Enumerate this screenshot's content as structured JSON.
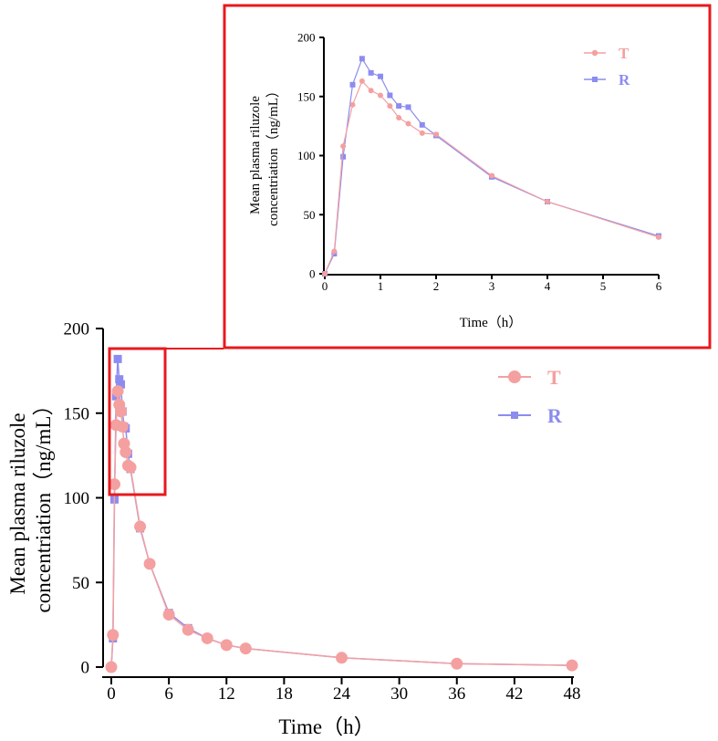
{
  "chart_data": [
    {
      "id": "main",
      "type": "line",
      "title": "",
      "xlabel": "Time（h）",
      "ylabel": [
        "Mean plasma riluzole",
        "concentriation（ng/mL）"
      ],
      "xlim": [
        0,
        48
      ],
      "ylim": [
        0,
        200
      ],
      "xticks": [
        0,
        6,
        12,
        18,
        24,
        30,
        36,
        42,
        48
      ],
      "yticks": [
        0,
        50,
        100,
        150,
        200
      ],
      "grid": false,
      "legend_position": "top-right",
      "series": [
        {
          "name": "T",
          "color": "#F4A0A0",
          "marker": "circle",
          "x": [
            0,
            0.17,
            0.33,
            0.5,
            0.67,
            0.83,
            1,
            1.17,
            1.33,
            1.5,
            1.75,
            2,
            3,
            4,
            6,
            8,
            10,
            12,
            14,
            24,
            36,
            48
          ],
          "y": [
            0,
            19,
            108,
            143,
            163,
            155,
            151,
            142,
            132,
            127,
            119,
            118,
            83,
            61,
            31,
            22,
            17,
            13,
            11,
            5.5,
            2,
            1
          ]
        },
        {
          "name": "R",
          "color": "#8C8CF0",
          "marker": "square",
          "x": [
            0,
            0.17,
            0.33,
            0.5,
            0.67,
            0.83,
            1,
            1.17,
            1.33,
            1.5,
            1.75,
            2,
            3,
            4,
            6,
            8,
            10,
            12,
            14,
            24,
            36,
            48
          ],
          "y": [
            0,
            17,
            99,
            160,
            182,
            170,
            167,
            151,
            142,
            141,
            126,
            117,
            82,
            61,
            32,
            23,
            17,
            13,
            11,
            5.5,
            2,
            1
          ]
        }
      ]
    },
    {
      "id": "inset",
      "type": "line",
      "title": "",
      "xlabel": "Time（h）",
      "ylabel": [
        "Mean plasma riluzole",
        "concentriation（ng/mL）"
      ],
      "xlim": [
        0,
        6
      ],
      "ylim": [
        0,
        200
      ],
      "xticks": [
        0,
        1,
        2,
        3,
        4,
        5,
        6
      ],
      "yticks": [
        0,
        50,
        100,
        150,
        200
      ],
      "grid": false,
      "legend_position": "top-right",
      "zoom_region": {
        "x": [
          0,
          2
        ],
        "y": [
          100,
          190
        ]
      },
      "series": [
        {
          "name": "T",
          "color": "#F4A0A0",
          "marker": "circle",
          "x": [
            0,
            0.17,
            0.33,
            0.5,
            0.67,
            0.83,
            1,
            1.17,
            1.33,
            1.5,
            1.75,
            2,
            3,
            4,
            6
          ],
          "y": [
            0,
            19,
            108,
            143,
            163,
            155,
            151,
            142,
            132,
            127,
            119,
            118,
            83,
            61,
            31
          ]
        },
        {
          "name": "R",
          "color": "#8C8CF0",
          "marker": "square",
          "x": [
            0,
            0.17,
            0.33,
            0.5,
            0.67,
            0.83,
            1,
            1.17,
            1.33,
            1.5,
            1.75,
            2,
            3,
            4,
            6
          ],
          "y": [
            0,
            17,
            99,
            160,
            182,
            170,
            167,
            151,
            142,
            141,
            126,
            117,
            82,
            61,
            32
          ]
        }
      ]
    }
  ],
  "colors": {
    "highlight": "#E8191D",
    "axis": "#000000"
  }
}
